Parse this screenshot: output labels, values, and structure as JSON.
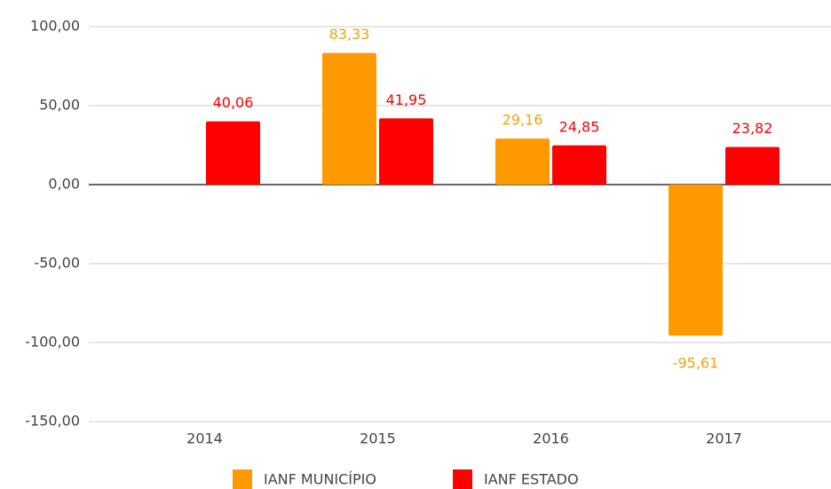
{
  "chart_data": {
    "type": "bar",
    "categories": [
      "2014",
      "2015",
      "2016",
      "2017"
    ],
    "series": [
      {
        "name": "IANF MUNICÍPIO",
        "color": "#ff9900",
        "label_color": "#f4a20b",
        "values": [
          null,
          83.33,
          29.16,
          -95.61
        ],
        "value_labels": [
          null,
          "83,33",
          "29,16",
          "-95,61"
        ]
      },
      {
        "name": "IANF ESTADO",
        "color": "#ff0000",
        "label_color": "#ff0000",
        "values": [
          40.06,
          41.95,
          24.85,
          23.82
        ],
        "value_labels": [
          "40,06",
          "41,95",
          "24,85",
          "23,82"
        ]
      }
    ],
    "ylim": [
      -150,
      100
    ],
    "yticks": [
      {
        "value": -150,
        "label": "-150,00"
      },
      {
        "value": -100,
        "label": "-100,00"
      },
      {
        "value": -50,
        "label": "-50,00"
      },
      {
        "value": 0,
        "label": "0,00"
      },
      {
        "value": 50,
        "label": "50,00"
      },
      {
        "value": 100,
        "label": "100,00"
      }
    ],
    "grid": true,
    "legend": "bottom"
  }
}
